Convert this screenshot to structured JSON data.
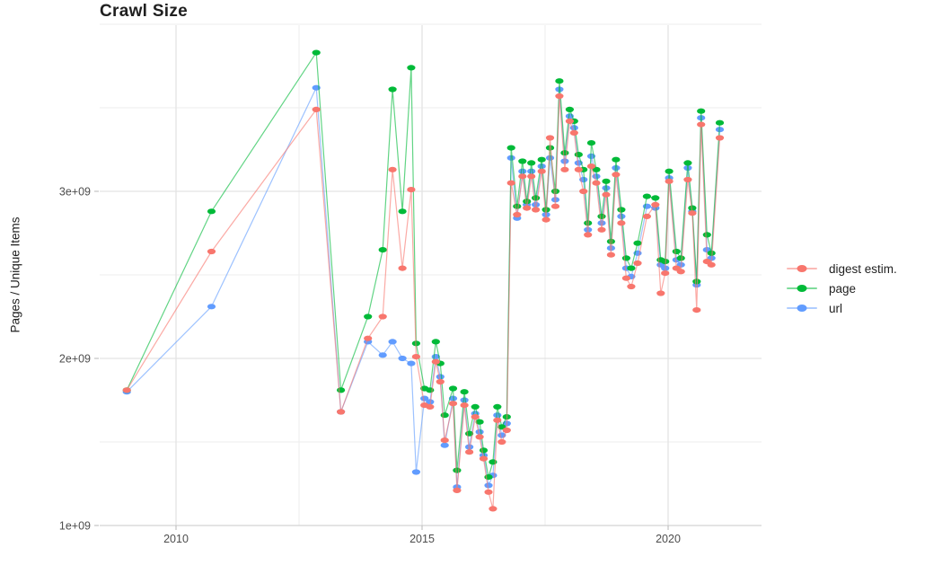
{
  "title": "Crawl Size",
  "y_axis": {
    "title": "Pages / Unique Items",
    "ticks": [
      {
        "value": 1,
        "label": "1e+09"
      },
      {
        "value": 2,
        "label": "2e+09"
      },
      {
        "value": 3,
        "label": "3e+09"
      }
    ],
    "minor": [
      1.5,
      2.5,
      3.5,
      4.0
    ],
    "range": [
      1.0,
      4.0
    ]
  },
  "x_axis": {
    "ticks": [
      {
        "value": 2010,
        "label": "2010"
      },
      {
        "value": 2015,
        "label": "2015"
      },
      {
        "value": 2020,
        "label": "2020"
      }
    ],
    "minor": [
      2012.5,
      2017.5
    ],
    "range": [
      2008.45,
      2021.9
    ]
  },
  "style": {
    "grid_major_color": "#e3e3e3",
    "grid_minor_color": "#ededed",
    "axis_line_color": "#d0d0d0",
    "tick_mark_color": "#bdbdbd",
    "tick_label_color": "#4d4d4d",
    "title_color": "#1f1f1f"
  },
  "chart_data": {
    "type": "line",
    "title": "Crawl Size",
    "xlabel": "",
    "ylabel": "Pages / Unique Items",
    "values_unit": "1e+09 (billions)",
    "legend_position": "right",
    "x": [
      2009.0,
      2010.72,
      2012.85,
      2013.35,
      2013.9,
      2014.2,
      2014.4,
      2014.6,
      2014.78,
      2014.88,
      2015.05,
      2015.16,
      2015.28,
      2015.37,
      2015.46,
      2015.63,
      2015.71,
      2015.86,
      2015.96,
      2016.08,
      2016.17,
      2016.25,
      2016.35,
      2016.44,
      2016.53,
      2016.62,
      2016.72,
      2016.81,
      2016.93,
      2017.04,
      2017.13,
      2017.22,
      2017.31,
      2017.43,
      2017.52,
      2017.6,
      2017.71,
      2017.79,
      2017.9,
      2018.0,
      2018.09,
      2018.18,
      2018.28,
      2018.37,
      2018.44,
      2018.54,
      2018.65,
      2018.74,
      2018.84,
      2018.94,
      2019.05,
      2019.15,
      2019.25,
      2019.38,
      2019.57,
      2019.74,
      2019.85,
      2019.94,
      2020.02,
      2020.17,
      2020.26,
      2020.4,
      2020.49,
      2020.58,
      2020.67,
      2020.79,
      2020.88,
      2021.05
    ],
    "series": [
      {
        "name": "digest estim.",
        "color": "#F8766D",
        "values": [
          1.81,
          2.64,
          3.49,
          1.68,
          2.12,
          2.25,
          3.13,
          2.54,
          3.01,
          2.01,
          1.72,
          1.71,
          1.98,
          1.86,
          1.51,
          1.73,
          1.21,
          1.72,
          1.44,
          1.65,
          1.53,
          1.4,
          1.2,
          1.1,
          1.63,
          1.5,
          1.57,
          3.05,
          2.86,
          3.09,
          2.9,
          3.09,
          2.89,
          3.12,
          2.83,
          3.32,
          2.91,
          3.57,
          3.13,
          3.42,
          3.35,
          3.13,
          3.0,
          2.74,
          3.15,
          3.05,
          2.77,
          2.98,
          2.62,
          3.1,
          2.81,
          2.48,
          2.43,
          2.57,
          2.85,
          2.92,
          2.39,
          2.51,
          3.06,
          2.54,
          2.52,
          3.07,
          2.87,
          2.29,
          3.4,
          2.58,
          2.56,
          3.32
        ]
      },
      {
        "name": "page",
        "color": "#00BA38",
        "values": [
          1.81,
          2.88,
          3.83,
          1.81,
          2.25,
          2.65,
          3.61,
          2.88,
          3.74,
          2.09,
          1.82,
          1.81,
          2.1,
          1.97,
          1.66,
          1.82,
          1.33,
          1.8,
          1.55,
          1.71,
          1.62,
          1.45,
          1.29,
          1.38,
          1.71,
          1.59,
          1.65,
          3.26,
          2.91,
          3.18,
          2.94,
          3.17,
          2.96,
          3.19,
          2.89,
          3.26,
          3.0,
          3.66,
          3.23,
          3.49,
          3.42,
          3.22,
          3.13,
          2.81,
          3.29,
          3.13,
          2.85,
          3.06,
          2.7,
          3.19,
          2.89,
          2.6,
          2.54,
          2.69,
          2.97,
          2.96,
          2.59,
          2.58,
          3.12,
          2.64,
          2.6,
          3.17,
          2.9,
          2.46,
          3.48,
          2.74,
          2.63,
          3.41
        ]
      },
      {
        "name": "url",
        "color": "#619CFF",
        "values": [
          1.8,
          2.31,
          3.62,
          1.68,
          2.1,
          2.02,
          2.1,
          2.0,
          1.97,
          1.32,
          1.76,
          1.74,
          2.01,
          1.89,
          1.48,
          1.76,
          1.23,
          1.75,
          1.47,
          1.67,
          1.56,
          1.42,
          1.24,
          1.3,
          1.66,
          1.54,
          1.61,
          3.2,
          2.84,
          3.12,
          2.92,
          3.12,
          2.92,
          3.15,
          2.86,
          3.2,
          2.95,
          3.61,
          3.18,
          3.45,
          3.38,
          3.17,
          3.07,
          2.77,
          3.21,
          3.09,
          2.81,
          3.02,
          2.66,
          3.14,
          2.85,
          2.54,
          2.49,
          2.63,
          2.91,
          2.9,
          2.56,
          2.54,
          3.08,
          2.59,
          2.56,
          3.14,
          2.88,
          2.44,
          3.44,
          2.65,
          2.6,
          3.37
        ]
      }
    ]
  }
}
